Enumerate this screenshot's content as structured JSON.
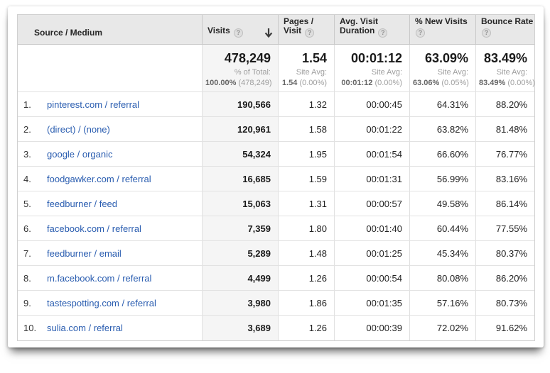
{
  "table": {
    "columns": {
      "source": {
        "label": "Source / Medium"
      },
      "visits": {
        "label": "Visits",
        "sort_icon": "down-arrow",
        "sort_direction": "descending"
      },
      "pages": {
        "line1": "Pages /",
        "line2": "Visit"
      },
      "duration": {
        "line1": "Avg. Visit",
        "line2": "Duration"
      },
      "new_visits": {
        "line1": "% New Visits"
      },
      "bounce": {
        "line1": "Bounce Rate"
      }
    },
    "help_glyph": "?",
    "summary": {
      "visits": {
        "value": "478,249",
        "sub_label": "% of Total:",
        "sub_value": "100.00%",
        "sub_delta": "(478,249)"
      },
      "pages": {
        "value": "1.54",
        "sub_label": "Site Avg:",
        "sub_value": "1.54",
        "sub_delta": "(0.00%)"
      },
      "duration": {
        "value": "00:01:12",
        "sub_label": "Site Avg:",
        "sub_value": "00:01:12",
        "sub_delta": "(0.00%)"
      },
      "new_visits": {
        "value": "63.09%",
        "sub_label": "Site Avg:",
        "sub_value": "63.06%",
        "sub_delta": "(0.05%)"
      },
      "bounce": {
        "value": "83.49%",
        "sub_label": "Site Avg:",
        "sub_value": "83.49%",
        "sub_delta": "(0.00%)"
      }
    },
    "rows": [
      {
        "rank": "1.",
        "source": "pinterest.com / referral",
        "visits": "190,566",
        "pages": "1.32",
        "duration": "00:00:45",
        "new_visits": "64.31%",
        "bounce": "88.20%"
      },
      {
        "rank": "2.",
        "source": "(direct) / (none)",
        "visits": "120,961",
        "pages": "1.58",
        "duration": "00:01:22",
        "new_visits": "63.82%",
        "bounce": "81.48%"
      },
      {
        "rank": "3.",
        "source": "google / organic",
        "visits": "54,324",
        "pages": "1.95",
        "duration": "00:01:54",
        "new_visits": "66.60%",
        "bounce": "76.77%"
      },
      {
        "rank": "4.",
        "source": "foodgawker.com / referral",
        "visits": "16,685",
        "pages": "1.59",
        "duration": "00:01:31",
        "new_visits": "56.99%",
        "bounce": "83.16%"
      },
      {
        "rank": "5.",
        "source": "feedburner / feed",
        "visits": "15,063",
        "pages": "1.31",
        "duration": "00:00:57",
        "new_visits": "49.58%",
        "bounce": "86.14%"
      },
      {
        "rank": "6.",
        "source": "facebook.com / referral",
        "visits": "7,359",
        "pages": "1.80",
        "duration": "00:01:40",
        "new_visits": "60.44%",
        "bounce": "77.55%"
      },
      {
        "rank": "7.",
        "source": "feedburner / email",
        "visits": "5,289",
        "pages": "1.48",
        "duration": "00:01:25",
        "new_visits": "45.34%",
        "bounce": "80.37%"
      },
      {
        "rank": "8.",
        "source": "m.facebook.com / referral",
        "visits": "4,499",
        "pages": "1.26",
        "duration": "00:00:54",
        "new_visits": "80.08%",
        "bounce": "86.20%"
      },
      {
        "rank": "9.",
        "source": "tastespotting.com / referral",
        "visits": "3,980",
        "pages": "1.86",
        "duration": "00:01:35",
        "new_visits": "57.16%",
        "bounce": "80.73%"
      },
      {
        "rank": "10.",
        "source": "sulia.com / referral",
        "visits": "3,689",
        "pages": "1.26",
        "duration": "00:00:39",
        "new_visits": "72.02%",
        "bounce": "91.62%"
      }
    ],
    "colors": {
      "link": "#2a5db0",
      "header_bg": "#e8e8e8",
      "sorted_column_bg": "#f5f5f5"
    }
  }
}
